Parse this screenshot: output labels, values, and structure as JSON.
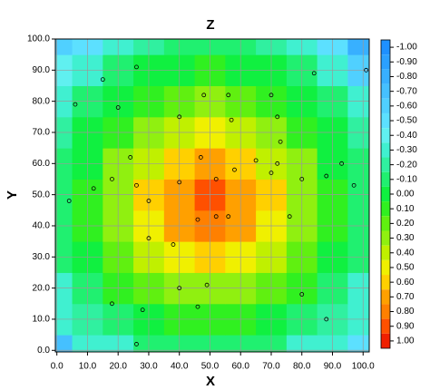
{
  "chart_data": {
    "type": "contour",
    "title": "Z",
    "x_label": "X",
    "y_label": "Y",
    "xlim": [
      -0.5,
      102
    ],
    "ylim": [
      -0.5,
      100
    ],
    "xticks": [
      {
        "value": 0,
        "label": "0.0"
      },
      {
        "value": 10,
        "label": "10.0"
      },
      {
        "value": 20,
        "label": "20.0"
      },
      {
        "value": 30,
        "label": "30.0"
      },
      {
        "value": 40,
        "label": "40.0"
      },
      {
        "value": 50,
        "label": "50.0"
      },
      {
        "value": 60,
        "label": "60.0"
      },
      {
        "value": 70,
        "label": "70.0"
      },
      {
        "value": 80,
        "label": "80.0"
      },
      {
        "value": 90,
        "label": "90.0"
      },
      {
        "value": 100,
        "label": "100.0"
      }
    ],
    "yticks": [
      {
        "value": 0,
        "label": "0.0"
      },
      {
        "value": 10,
        "label": "10.0"
      },
      {
        "value": 20,
        "label": "20.0"
      },
      {
        "value": 30,
        "label": "30.0"
      },
      {
        "value": 40,
        "label": "40.0"
      },
      {
        "value": 50,
        "label": "50.0"
      },
      {
        "value": 60,
        "label": "60.0"
      },
      {
        "value": 70,
        "label": "70.0"
      },
      {
        "value": 80,
        "label": "80.0"
      },
      {
        "value": 90,
        "label": "90.0"
      },
      {
        "value": 100,
        "label": "100.0"
      }
    ],
    "grid": true,
    "x_grid": [
      0,
      10,
      20,
      30,
      40,
      50,
      60,
      70,
      80,
      90,
      100
    ],
    "y_grid": [
      0,
      10,
      20,
      30,
      40,
      50,
      60,
      70,
      80,
      90,
      100
    ],
    "z": [
      [
        -0.7,
        -0.35,
        -0.25,
        -0.15,
        -0.1,
        -0.05,
        -0.1,
        -0.15,
        -0.25,
        -0.35,
        -0.5
      ],
      [
        -0.35,
        -0.2,
        -0.05,
        0.05,
        0.15,
        0.15,
        0.15,
        0.05,
        -0.05,
        -0.2,
        -0.35
      ],
      [
        -0.25,
        -0.05,
        0.1,
        0.25,
        0.35,
        0.35,
        0.35,
        0.25,
        0.1,
        -0.05,
        -0.25
      ],
      [
        -0.15,
        0.05,
        0.2,
        0.4,
        0.5,
        0.55,
        0.5,
        0.4,
        0.2,
        0.05,
        -0.15
      ],
      [
        -0.1,
        0.1,
        0.3,
        0.5,
        0.7,
        0.8,
        0.7,
        0.5,
        0.3,
        0.1,
        -0.1
      ],
      [
        -0.1,
        0.1,
        0.3,
        0.55,
        0.75,
        0.95,
        0.75,
        0.55,
        0.3,
        0.1,
        -0.1
      ],
      [
        -0.1,
        0.05,
        0.3,
        0.45,
        0.6,
        0.7,
        0.6,
        0.45,
        0.3,
        0.05,
        -0.1
      ],
      [
        -0.2,
        0,
        0.15,
        0.3,
        0.45,
        0.5,
        0.45,
        0.3,
        0.15,
        0,
        -0.2
      ],
      [
        -0.3,
        -0.1,
        0.05,
        0.15,
        0.25,
        0.3,
        0.25,
        0.15,
        0.05,
        -0.1,
        -0.3
      ],
      [
        -0.4,
        -0.25,
        -0.15,
        0,
        0.05,
        0.1,
        0.05,
        0,
        -0.15,
        -0.25,
        -0.6
      ],
      [
        -0.55,
        -0.45,
        -0.3,
        -0.2,
        -0.15,
        -0.15,
        -0.15,
        -0.2,
        -0.3,
        -0.45,
        -0.8
      ]
    ],
    "points": {
      "x": [
        26,
        15,
        6,
        20,
        12,
        4,
        18,
        24,
        26,
        30,
        40,
        40,
        48,
        56,
        57,
        47,
        52,
        58,
        65,
        72,
        70,
        80,
        76,
        88,
        93,
        97,
        101,
        84,
        70,
        72,
        73,
        38,
        40,
        46,
        49,
        46,
        52,
        56,
        30,
        28,
        26,
        18,
        80,
        88
      ],
      "y": [
        91,
        87,
        79,
        78,
        52,
        48,
        55,
        62,
        53,
        48,
        54,
        75,
        82,
        82,
        74,
        62,
        55,
        58,
        61,
        60,
        57,
        55,
        43,
        56,
        60,
        53,
        90,
        89,
        82,
        75,
        67,
        34,
        20,
        14,
        21,
        42,
        43,
        43,
        36,
        13,
        2,
        15,
        18,
        10
      ]
    },
    "colorbar": {
      "levels": [
        {
          "value": -1,
          "label": "-1.00"
        },
        {
          "value": -0.9,
          "label": "-0.90"
        },
        {
          "value": -0.8,
          "label": "-0.80"
        },
        {
          "value": -0.7,
          "label": "-0.70"
        },
        {
          "value": -0.6,
          "label": "-0.60"
        },
        {
          "value": -0.5,
          "label": "-0.50"
        },
        {
          "value": -0.4,
          "label": "-0.40"
        },
        {
          "value": -0.3,
          "label": "-0.30"
        },
        {
          "value": -0.2,
          "label": "-0.20"
        },
        {
          "value": -0.1,
          "label": "-0.10"
        },
        {
          "value": 0,
          "label": "0.00"
        },
        {
          "value": 0.1,
          "label": "0.10"
        },
        {
          "value": 0.2,
          "label": "0.20"
        },
        {
          "value": 0.3,
          "label": "0.30"
        },
        {
          "value": 0.4,
          "label": "0.40"
        },
        {
          "value": 0.5,
          "label": "0.50"
        },
        {
          "value": 0.6,
          "label": "0.60"
        },
        {
          "value": 0.7,
          "label": "0.70"
        },
        {
          "value": 0.8,
          "label": "0.80"
        },
        {
          "value": 0.9,
          "label": "0.90"
        },
        {
          "value": 1,
          "label": "1.00"
        }
      ],
      "colors": [
        "#1e90ff",
        "#2ba0ff",
        "#38b0ff",
        "#45c0ff",
        "#50d0ff",
        "#5ce0ff",
        "#60f0f0",
        "#40f0d0",
        "#30f0a0",
        "#20f070",
        "#10f040",
        "#30f020",
        "#60f010",
        "#90f010",
        "#c0f000",
        "#f0f000",
        "#ffd000",
        "#ffa000",
        "#ff8000",
        "#ff5000",
        "#f02000"
      ]
    }
  }
}
